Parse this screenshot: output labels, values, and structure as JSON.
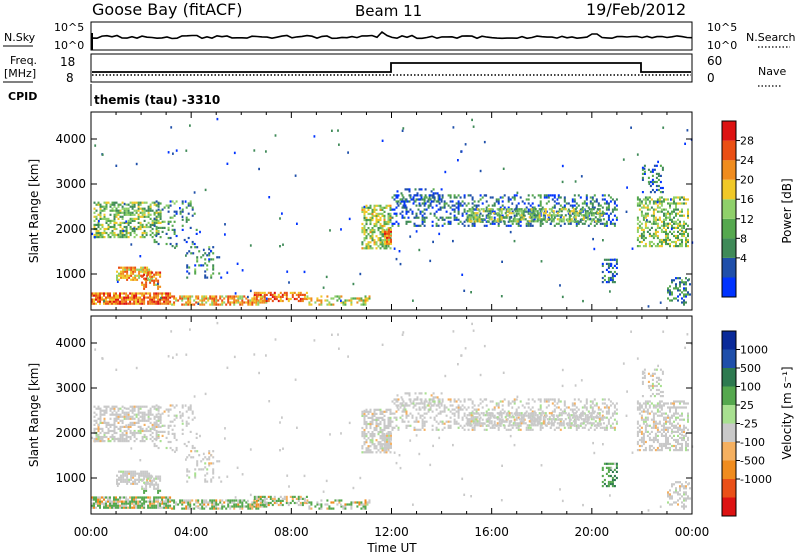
{
  "header": {
    "station": "Goose Bay (fitACF)",
    "beam": "Beam 11",
    "date": "19/Feb/2012"
  },
  "strip_labels": {
    "nsky": "N.Sky",
    "nsearch": "N.Search",
    "freq": "Freq.",
    "mhz": "[MHz]",
    "nave": "Nave",
    "cpid": "CPID",
    "cpid_value": "themis (tau) -3310",
    "noise_ticks": [
      "10^5",
      "10^0"
    ],
    "freq_ticks": [
      "18",
      "8"
    ],
    "nave_ticks": [
      "60",
      "0"
    ]
  },
  "colors": {
    "scale": [
      "#0033ff",
      "#1f4faa",
      "#3f8a58",
      "#55a84e",
      "#8fd06a",
      "#f0c828",
      "#f08c1e",
      "#ea4f14",
      "#dd1212"
    ],
    "velocity_scale": [
      "#dd1212",
      "#ea5018",
      "#f08c1e",
      "#f5b060",
      "#c9c9c9",
      "#a8e090",
      "#55a84e",
      "#2e7a50",
      "#1f4faa",
      "#0a2a99"
    ]
  },
  "chart_data": [
    {
      "type": "heatmap",
      "name": "power",
      "ylabel": "Slant Range [km]",
      "yticks": [
        "4000",
        "3000",
        "2000",
        "1000"
      ],
      "xticks": [
        "00:00",
        "04:00",
        "08:00",
        "12:00",
        "16:00",
        "20:00",
        "00:00"
      ],
      "colorbar_label": "Power [dB]",
      "colorbar_ticks": [
        "28",
        "24",
        "20",
        "16",
        "12",
        "8",
        "4"
      ],
      "ylim": [
        200,
        4600
      ],
      "xlim": [
        0,
        24
      ]
    },
    {
      "type": "heatmap",
      "name": "velocity",
      "ylabel": "Slant Range [km]",
      "yticks": [
        "4000",
        "3000",
        "2000",
        "1000"
      ],
      "xticks": [
        "00:00",
        "04:00",
        "08:00",
        "12:00",
        "16:00",
        "20:00",
        "00:00"
      ],
      "xlabel": "Time UT",
      "colorbar_label": "Velocity [m s⁻¹]",
      "colorbar_ticks": [
        "1000",
        "500",
        "100",
        "25",
        "-25",
        "-100",
        "-500",
        "-1000"
      ],
      "ylim": [
        200,
        4600
      ],
      "xlim": [
        0,
        24
      ]
    }
  ]
}
